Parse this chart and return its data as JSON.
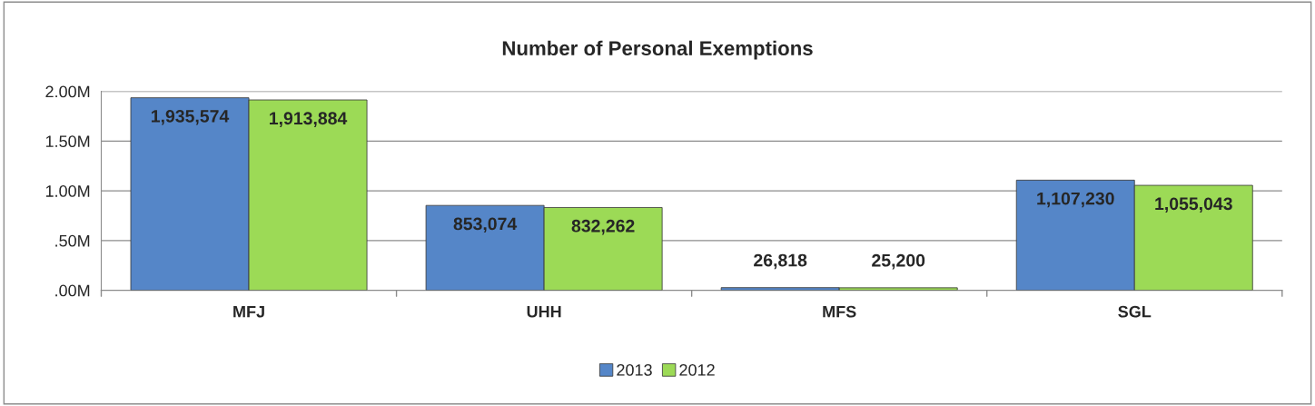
{
  "chart_data": {
    "type": "bar",
    "title": "Number of Personal Exemptions",
    "categories": [
      "MFJ",
      "UHH",
      "MFS",
      "SGL"
    ],
    "series": [
      {
        "name": "2013",
        "color": "#5586c8",
        "values": [
          1935574,
          853074,
          26818,
          1107230
        ],
        "value_labels": [
          "1,935,574",
          "853,074",
          "26,818",
          "1,107,230"
        ]
      },
      {
        "name": "2012",
        "color": "#9cda56",
        "values": [
          1913884,
          832262,
          25200,
          1055043
        ],
        "value_labels": [
          "1,913,884",
          "832,262",
          "25,200",
          "1,055,043"
        ]
      }
    ],
    "ylim": [
      0,
      2000000
    ],
    "yticks": [
      {
        "value": 0,
        "label": ".00M"
      },
      {
        "value": 500000,
        "label": ".50M"
      },
      {
        "value": 1000000,
        "label": "1.00M"
      },
      {
        "value": 1500000,
        "label": "1.50M"
      },
      {
        "value": 2000000,
        "label": "2.00M"
      }
    ],
    "grid": "y",
    "legend": "bottom"
  }
}
